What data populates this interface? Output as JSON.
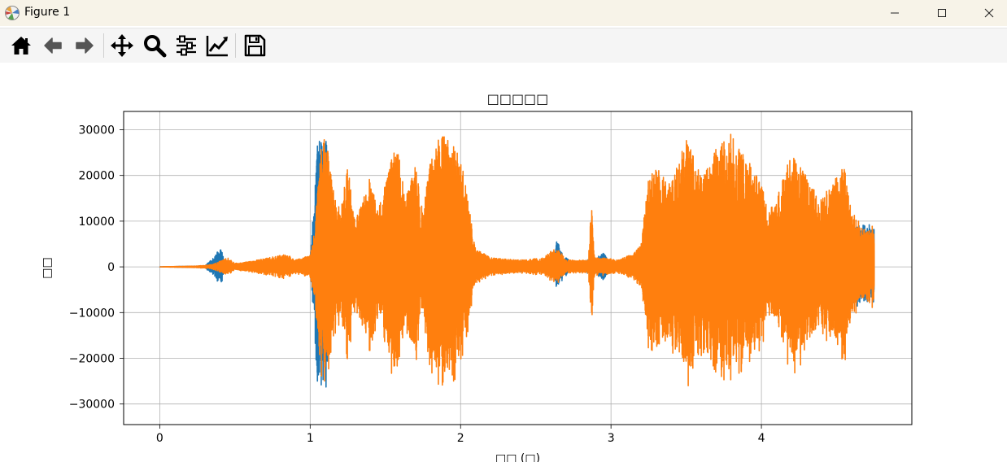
{
  "window": {
    "title": "Figure 1",
    "controls": [
      "minimize",
      "maximize",
      "close"
    ]
  },
  "toolbar": {
    "buttons": [
      {
        "name": "home-icon",
        "tooltip": "Reset original view"
      },
      {
        "name": "back-arrow-icon",
        "tooltip": "Back"
      },
      {
        "name": "forward-arrow-icon",
        "tooltip": "Forward"
      },
      {
        "name": "pan-icon",
        "tooltip": "Pan"
      },
      {
        "name": "zoom-icon",
        "tooltip": "Zoom"
      },
      {
        "name": "subplots-icon",
        "tooltip": "Configure subplots"
      },
      {
        "name": "axes-edit-icon",
        "tooltip": "Edit axis"
      },
      {
        "name": "save-icon",
        "tooltip": "Save"
      }
    ]
  },
  "chart_data": {
    "type": "line",
    "title": "□□□□□",
    "xlabel": "□□ (□)",
    "ylabel": "□□",
    "xlim": [
      -0.24,
      5.0
    ],
    "ylim": [
      -34500,
      34000
    ],
    "xticks": [
      0,
      1,
      2,
      3,
      4
    ],
    "xtick_labels": [
      "0",
      "1",
      "2",
      "3",
      "4"
    ],
    "yticks": [
      30000,
      20000,
      10000,
      0,
      -10000,
      -20000,
      -30000
    ],
    "ytick_labels": [
      "30000",
      "20000",
      "10000",
      "0",
      "−10000",
      "−20000",
      "−30000"
    ],
    "grid": true,
    "colors": {
      "series1": "#1f77b4",
      "series2": "#ff7f0e"
    },
    "series": [
      {
        "name": "",
        "color": "#1f77b4",
        "envelope": [
          [
            0.0,
            0
          ],
          [
            0.3,
            200
          ],
          [
            0.37,
            2500
          ],
          [
            0.39,
            4000
          ],
          [
            0.41,
            4000
          ],
          [
            0.43,
            1500
          ],
          [
            0.5,
            600
          ],
          [
            1.0,
            1500
          ],
          [
            1.05,
            28000
          ],
          [
            1.1,
            29000
          ],
          [
            1.2,
            2500
          ],
          [
            2.6,
            1000
          ],
          [
            2.64,
            6000
          ],
          [
            2.68,
            2500
          ],
          [
            2.75,
            800
          ],
          [
            2.9,
            2000
          ],
          [
            2.95,
            3000
          ],
          [
            3.0,
            800
          ],
          [
            3.2,
            1500
          ],
          [
            4.75,
            9500
          ]
        ]
      },
      {
        "name": "",
        "color": "#ff7f0e",
        "envelope": [
          [
            0.0,
            0
          ],
          [
            0.25,
            200
          ],
          [
            0.35,
            500
          ],
          [
            0.45,
            2000
          ],
          [
            0.5,
            800
          ],
          [
            0.6,
            1200
          ],
          [
            0.85,
            2800
          ],
          [
            0.9,
            1500
          ],
          [
            1.0,
            2500
          ],
          [
            1.03,
            8000
          ],
          [
            1.07,
            27000
          ],
          [
            1.1,
            29000
          ],
          [
            1.12,
            25000
          ],
          [
            1.15,
            18000
          ],
          [
            1.2,
            12000
          ],
          [
            1.25,
            22000
          ],
          [
            1.3,
            10000
          ],
          [
            1.4,
            20000
          ],
          [
            1.45,
            12000
          ],
          [
            1.5,
            18000
          ],
          [
            1.55,
            25000
          ],
          [
            1.58,
            27000
          ],
          [
            1.63,
            15000
          ],
          [
            1.7,
            22000
          ],
          [
            1.75,
            12000
          ],
          [
            1.8,
            24000
          ],
          [
            1.85,
            28000
          ],
          [
            1.9,
            29000
          ],
          [
            1.95,
            27000
          ],
          [
            2.0,
            24000
          ],
          [
            2.05,
            15000
          ],
          [
            2.1,
            4000
          ],
          [
            2.2,
            2000
          ],
          [
            2.4,
            1500
          ],
          [
            2.55,
            2000
          ],
          [
            2.62,
            4000
          ],
          [
            2.66,
            3500
          ],
          [
            2.7,
            1500
          ],
          [
            2.85,
            1500
          ],
          [
            2.87,
            14000
          ],
          [
            2.89,
            2000
          ],
          [
            2.95,
            2000
          ],
          [
            3.05,
            1500
          ],
          [
            3.15,
            3000
          ],
          [
            3.2,
            5000
          ],
          [
            3.25,
            20000
          ],
          [
            3.3,
            22000
          ],
          [
            3.4,
            18000
          ],
          [
            3.5,
            28000
          ],
          [
            3.55,
            24000
          ],
          [
            3.6,
            20000
          ],
          [
            3.7,
            26000
          ],
          [
            3.75,
            29000
          ],
          [
            3.8,
            30000
          ],
          [
            3.85,
            26000
          ],
          [
            3.9,
            24000
          ],
          [
            4.0,
            18000
          ],
          [
            4.05,
            12000
          ],
          [
            4.15,
            20000
          ],
          [
            4.2,
            25000
          ],
          [
            4.3,
            20000
          ],
          [
            4.4,
            15000
          ],
          [
            4.5,
            20000
          ],
          [
            4.55,
            22000
          ],
          [
            4.6,
            12000
          ],
          [
            4.7,
            8000
          ],
          [
            4.75,
            9500
          ]
        ]
      }
    ]
  }
}
